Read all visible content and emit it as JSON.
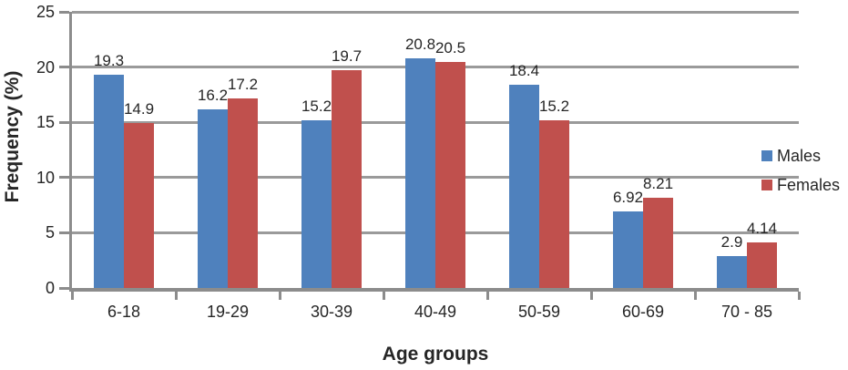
{
  "chart_data": {
    "type": "bar",
    "title": "",
    "categories": [
      "6-18",
      "19-29",
      "30-39",
      "40-49",
      "50-59",
      "60-69",
      "70 - 85"
    ],
    "series": [
      {
        "name": "Males",
        "color": "#4f81bd",
        "values": [
          19.3,
          16.2,
          15.2,
          20.8,
          18.4,
          6.92,
          2.9
        ]
      },
      {
        "name": "Females",
        "color": "#c0504d",
        "values": [
          14.9,
          17.2,
          19.7,
          20.5,
          15.2,
          8.21,
          4.14
        ]
      }
    ],
    "xlabel": "Age groups",
    "ylabel": "Frequency (%)",
    "ylim": [
      0,
      25
    ],
    "yticks": [
      0,
      5,
      10,
      15,
      20,
      25
    ],
    "grid": true,
    "legend_position": "right",
    "data_labels": true,
    "colors": {
      "gridline": "#9a9a9a",
      "axis": "#8c8c8c",
      "text": "#262626",
      "background": "#ffffff"
    }
  }
}
